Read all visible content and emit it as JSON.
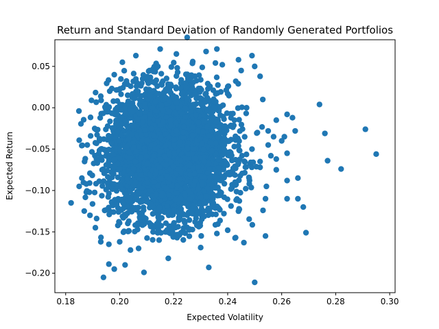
{
  "chart_data": {
    "type": "scatter",
    "title": "Return and Standard Deviation of Randomly Generated Portfolios",
    "xlabel": "Expected Volatility",
    "ylabel": "Expected Return",
    "xlim": [
      0.176,
      0.302
    ],
    "ylim": [
      -0.2235,
      0.0822
    ],
    "xticks": [
      0.18,
      0.2,
      0.22,
      0.24,
      0.26,
      0.28,
      0.3
    ],
    "xtick_labels": [
      "0.18",
      "0.20",
      "0.22",
      "0.24",
      "0.26",
      "0.28",
      "0.30"
    ],
    "yticks": [
      -0.2,
      -0.15,
      -0.1,
      -0.05,
      0.0,
      0.05
    ],
    "ytick_labels": [
      "−0.20",
      "−0.15",
      "−0.10",
      "−0.05",
      "0.00",
      "0.05"
    ],
    "grid": false,
    "marker_color": "#1f77b4",
    "main_cloud": {
      "description": "dense cluster of several thousand random portfolios",
      "center": [
        0.218,
        -0.055
      ],
      "spread": [
        0.011,
        0.04
      ],
      "count": 4000
    },
    "points": [
      [
        0.182,
        -0.115
      ],
      [
        0.185,
        -0.095
      ],
      [
        0.186,
        -0.085
      ],
      [
        0.187,
        -0.065
      ],
      [
        0.188,
        -0.045
      ],
      [
        0.189,
        -0.13
      ],
      [
        0.191,
        -0.145
      ],
      [
        0.193,
        0.014
      ],
      [
        0.193,
        -0.162
      ],
      [
        0.194,
        -0.205
      ],
      [
        0.196,
        -0.165
      ],
      [
        0.196,
        -0.189
      ],
      [
        0.198,
        -0.195
      ],
      [
        0.2,
        -0.162
      ],
      [
        0.202,
        -0.19
      ],
      [
        0.204,
        -0.172
      ],
      [
        0.207,
        -0.17
      ],
      [
        0.209,
        -0.199
      ],
      [
        0.218,
        -0.182
      ],
      [
        0.23,
        -0.169
      ],
      [
        0.233,
        -0.193
      ],
      [
        0.25,
        -0.211
      ],
      [
        0.246,
        -0.163
      ],
      [
        0.254,
        -0.155
      ],
      [
        0.269,
        -0.151
      ],
      [
        0.268,
        -0.12
      ],
      [
        0.266,
        -0.11
      ],
      [
        0.262,
        -0.11
      ],
      [
        0.254,
        -0.11
      ],
      [
        0.262,
        -0.088
      ],
      [
        0.266,
        -0.085
      ],
      [
        0.258,
        -0.075
      ],
      [
        0.252,
        -0.065
      ],
      [
        0.256,
        -0.058
      ],
      [
        0.262,
        -0.055
      ],
      [
        0.265,
        -0.028
      ],
      [
        0.261,
        -0.035
      ],
      [
        0.258,
        -0.015
      ],
      [
        0.262,
        -0.008
      ],
      [
        0.255,
        -0.045
      ],
      [
        0.26,
        -0.04
      ],
      [
        0.251,
        -0.03
      ],
      [
        0.249,
        -0.05
      ],
      [
        0.247,
        0.0
      ],
      [
        0.25,
        0.05
      ],
      [
        0.252,
        0.038
      ],
      [
        0.249,
        0.063
      ],
      [
        0.244,
        0.058
      ],
      [
        0.243,
        0.032
      ],
      [
        0.24,
        0.017
      ],
      [
        0.236,
        0.071
      ],
      [
        0.232,
        0.068
      ],
      [
        0.225,
        0.085
      ],
      [
        0.274,
        0.004
      ],
      [
        0.276,
        -0.031
      ],
      [
        0.277,
        -0.064
      ],
      [
        0.282,
        -0.074
      ],
      [
        0.291,
        -0.026
      ],
      [
        0.295,
        -0.056
      ],
      [
        0.201,
        0.055
      ],
      [
        0.206,
        0.063
      ],
      [
        0.215,
        0.071
      ],
      [
        0.221,
        0.065
      ],
      [
        0.198,
        0.04
      ],
      [
        0.255,
        -0.028
      ],
      [
        0.258,
        -0.062
      ],
      [
        0.248,
        -0.092
      ],
      [
        0.244,
        -0.125
      ],
      [
        0.24,
        -0.148
      ],
      [
        0.236,
        -0.152
      ],
      [
        0.252,
        -0.072
      ],
      [
        0.257,
        -0.035
      ],
      [
        0.264,
        -0.012
      ],
      [
        0.253,
        0.01
      ],
      [
        0.245,
        0.045
      ],
      [
        0.238,
        0.052
      ]
    ]
  }
}
